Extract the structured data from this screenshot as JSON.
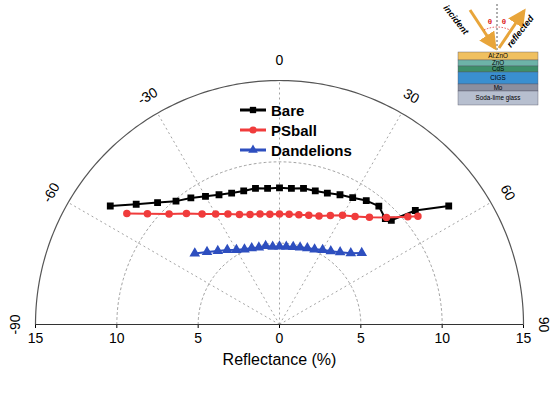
{
  "chart_data": {
    "type": "polar",
    "x_label": "Reflectance (%)",
    "xlim": [
      -90,
      90
    ],
    "xticks": [
      -90,
      -60,
      -30,
      0,
      30,
      60,
      90
    ],
    "ylim": [
      0,
      15
    ],
    "yticks": [
      0,
      5,
      10,
      15
    ],
    "grid": true,
    "legend": "top",
    "series": [
      {
        "name": "Bare",
        "color": "#000000",
        "marker": "square",
        "x": [
          -55,
          -50,
          -45,
          -40,
          -35,
          -30,
          -25,
          -20,
          -15,
          -10,
          -5,
          0,
          5,
          10,
          15,
          20,
          25,
          30,
          35,
          40,
          45,
          47,
          50,
          55
        ],
        "values": [
          12.7,
          11.5,
          10.6,
          9.9,
          9.5,
          9.1,
          8.8,
          8.6,
          8.5,
          8.5,
          8.4,
          8.4,
          8.4,
          8.5,
          8.5,
          8.6,
          8.8,
          9.0,
          9.3,
          9.5,
          9.2,
          9.4,
          10.9,
          12.7
        ]
      },
      {
        "name": "PSball",
        "color": "#f03c3c",
        "marker": "circle",
        "x": [
          -54,
          -50,
          -45,
          -40,
          -35,
          -30,
          -25,
          -20,
          -15,
          -10,
          -5,
          0,
          5,
          10,
          15,
          20,
          25,
          30,
          35,
          40,
          45,
          50,
          52
        ],
        "values": [
          11.6,
          10.6,
          9.6,
          8.9,
          8.3,
          7.85,
          7.5,
          7.2,
          7.0,
          6.9,
          6.8,
          6.8,
          6.8,
          6.85,
          6.95,
          7.1,
          7.4,
          7.75,
          8.1,
          8.6,
          9.3,
          10.3,
          10.8
        ]
      },
      {
        "name": "Dandelions",
        "color": "#2e4fbf",
        "marker": "triangle",
        "x": [
          -50,
          -45,
          -40,
          -35,
          -30,
          -25,
          -20,
          -15,
          -10,
          -5,
          0,
          5,
          10,
          15,
          20,
          25,
          30,
          35,
          40,
          45,
          49
        ],
        "values": [
          6.8,
          6.3,
          5.9,
          5.6,
          5.3,
          5.1,
          5.0,
          4.9,
          4.9,
          4.8,
          4.8,
          4.8,
          4.85,
          4.9,
          5.0,
          5.1,
          5.3,
          5.5,
          5.8,
          6.2,
          6.7
        ]
      }
    ],
    "inset": {
      "incident": "incident",
      "reflected": "reflected",
      "angle": "θ",
      "layers": [
        "Al:ZnO",
        "ZnO",
        "CdS",
        "CIGS",
        "Mo",
        "Soda-lime glass"
      ]
    }
  }
}
